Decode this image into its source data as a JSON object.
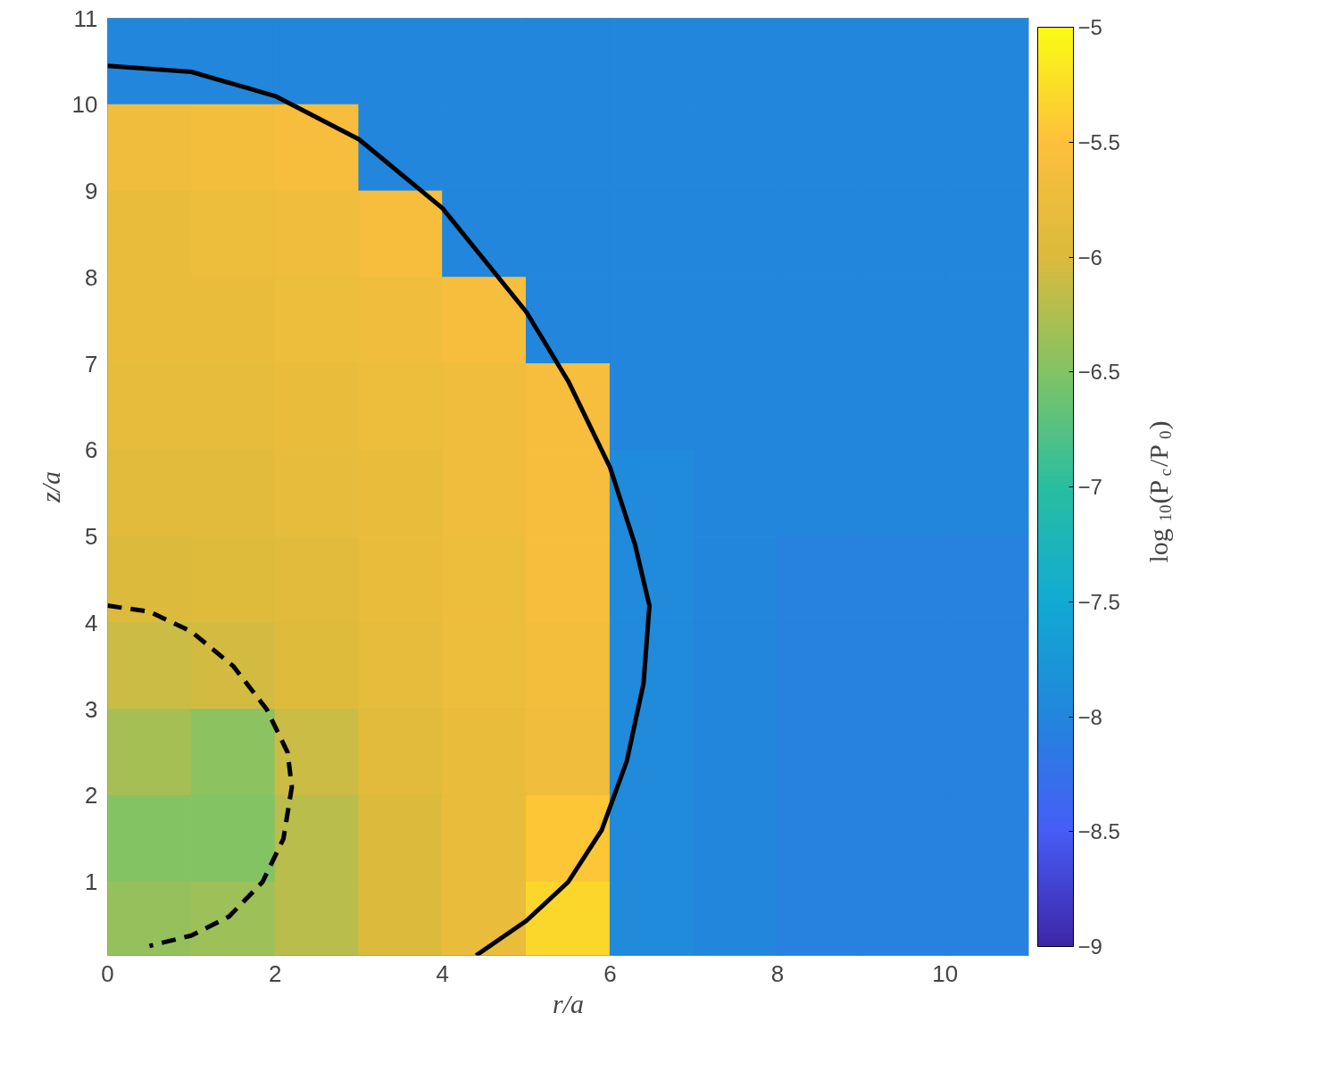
{
  "chart_data": {
    "type": "heatmap",
    "xlabel": "r/a",
    "ylabel": "z/a",
    "clabel": "log$_{10}$(P$_{c}$/P$_{0}$)",
    "x": [
      0.5,
      1.5,
      2.5,
      3.5,
      4.5,
      5.5,
      6.5,
      7.5,
      8.5,
      9.5,
      10.5
    ],
    "y": [
      10.5,
      9.5,
      8.5,
      7.5,
      6.5,
      5.5,
      4.5,
      3.5,
      2.5,
      1.5,
      0.5
    ],
    "cells": [
      [
        -8,
        -8,
        -8,
        -8,
        -8,
        -8,
        -8,
        -8,
        -8,
        -8,
        -8
      ],
      [
        -5.7,
        -5.65,
        -5.6,
        -8,
        -8,
        -8,
        -8,
        -8,
        -8,
        -8,
        -8
      ],
      [
        -5.8,
        -5.75,
        -5.7,
        -5.6,
        -8,
        -8,
        -8,
        -8,
        -8,
        -8,
        -8
      ],
      [
        -5.8,
        -5.8,
        -5.75,
        -5.7,
        -5.6,
        -8,
        -8,
        -8,
        -8,
        -8,
        -8
      ],
      [
        -5.85,
        -5.85,
        -5.8,
        -5.75,
        -5.7,
        -5.6,
        -8,
        -8,
        -8,
        -8,
        -8
      ],
      [
        -5.9,
        -5.9,
        -5.85,
        -5.8,
        -5.7,
        -5.6,
        -7.95,
        -8,
        -8,
        -8,
        -8
      ],
      [
        -6,
        -5.95,
        -5.9,
        -5.8,
        -5.75,
        -5.6,
        -7.95,
        -8,
        -8.05,
        -8.05,
        -8.05
      ],
      [
        -6.1,
        -6.05,
        -5.95,
        -5.85,
        -5.75,
        -5.65,
        -7.95,
        -8,
        -8.05,
        -8.05,
        -8.05
      ],
      [
        -6.3,
        -6.45,
        -6.1,
        -5.9,
        -5.8,
        -5.7,
        -7.95,
        -8,
        -8.05,
        -8.05,
        -8.05
      ],
      [
        -6.5,
        -6.5,
        -6.2,
        -6,
        -5.8,
        -5.45,
        -7.95,
        -8,
        -8.05,
        -8.05,
        -8.05
      ],
      [
        -6.4,
        -6.35,
        -6.2,
        -6,
        -5.8,
        -5.3,
        -7.95,
        -8,
        -8.05,
        -8.05,
        -8.05
      ]
    ],
    "clim": [
      -9,
      -5
    ],
    "cticks": [
      -9,
      -8.5,
      -8,
      -7.5,
      -7,
      -6.5,
      -6,
      -5.5,
      -5
    ],
    "xlim": [
      0,
      11
    ],
    "ylim": [
      0.15,
      11
    ],
    "xticks": [
      0,
      2,
      4,
      6,
      8,
      10
    ],
    "yticks": [
      1,
      2,
      3,
      4,
      5,
      6,
      7,
      8,
      9,
      10,
      11
    ],
    "series": [
      {
        "type": "line",
        "color": "#000000",
        "line_style": "solid",
        "x": [
          0,
          1,
          2,
          3,
          4,
          5,
          5.5,
          6,
          6.3,
          6.47,
          6.4,
          6.2,
          5.9,
          5.5,
          5,
          4.4
        ],
        "values": [
          10.45,
          10.38,
          10.1,
          9.6,
          8.8,
          7.6,
          6.8,
          5.8,
          4.9,
          4.2,
          3.3,
          2.4,
          1.6,
          1,
          0.55,
          0.15
        ]
      },
      {
        "type": "line",
        "color": "#000000",
        "line_style": "dashed",
        "x": [
          0,
          0.5,
          1,
          1.5,
          1.9,
          2.15,
          2.2,
          2.1,
          1.85,
          1.45,
          1,
          0.5
        ],
        "values": [
          4.2,
          4.13,
          3.9,
          3.5,
          3,
          2.5,
          2.1,
          1.5,
          1,
          0.6,
          0.38,
          0.26
        ]
      }
    ]
  }
}
